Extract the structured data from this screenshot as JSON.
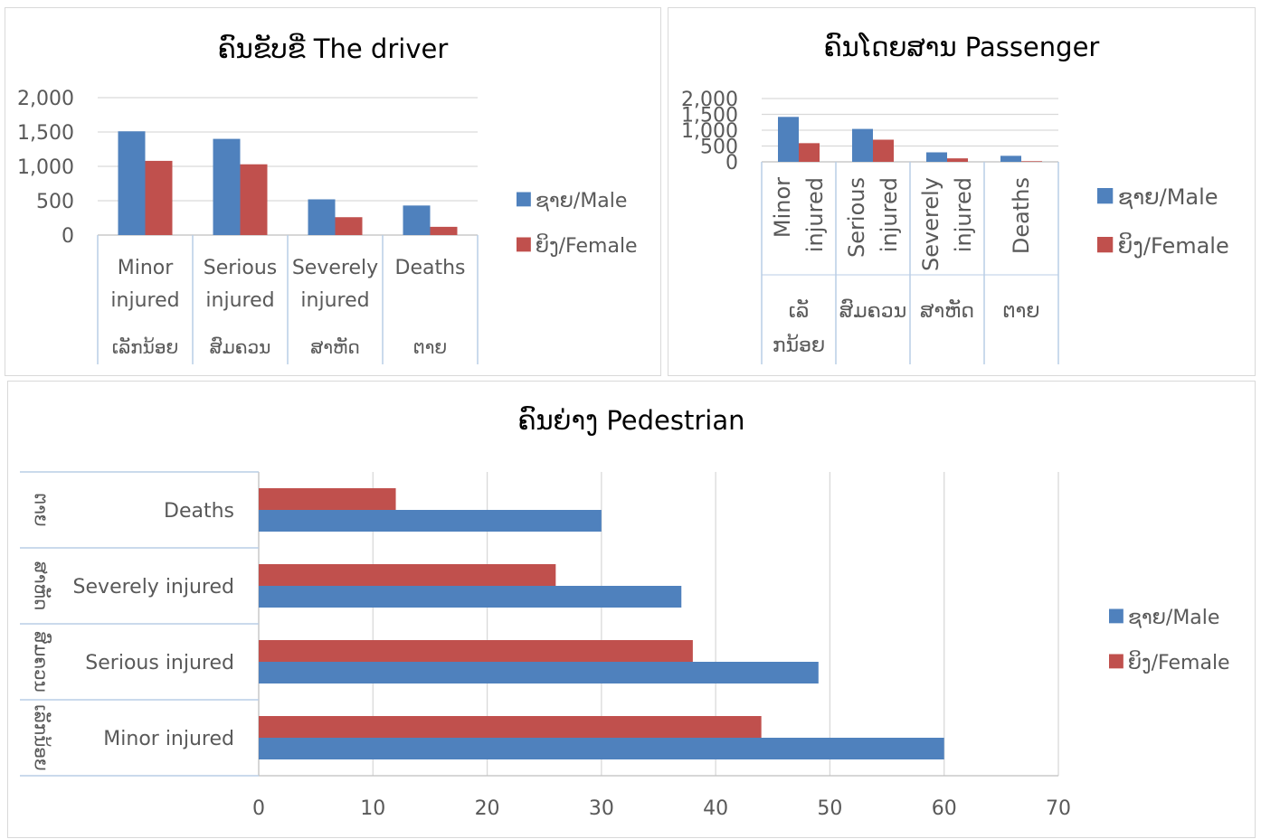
{
  "colors": {
    "male": "#4f81bd",
    "female": "#c0504d",
    "grid": "#d9d9d9",
    "axis": "#bfbfbf",
    "text": "#595959",
    "catline": "#b9cde5"
  },
  "legend": {
    "male": "ຊາຍ/Male",
    "female": "ຍິງ/Female"
  },
  "chart_data": [
    {
      "type": "bar",
      "title": "ຄົນຂັບຂີ່ The driver",
      "categories": [
        "Minor injured",
        "Serious injured",
        "Severely injured",
        "Deaths"
      ],
      "categories_lao": [
        "ເລັກນ້ອຍ",
        "ສົມຄວນ",
        "ສາຫັດ",
        "ຕາຍ"
      ],
      "ylim": [
        0,
        2000
      ],
      "yticks": [
        "2,000",
        "1,500",
        "1,000",
        "500",
        "0"
      ],
      "series": [
        {
          "name": "ຊາຍ/Male",
          "values": [
            1510,
            1400,
            520,
            430
          ]
        },
        {
          "name": "ຍິງ/Female",
          "values": [
            1080,
            1030,
            260,
            120
          ]
        }
      ],
      "legend_position": "right"
    },
    {
      "type": "bar",
      "title": "ຄົນໂດຍສານ Passenger",
      "categories": [
        "Minor injured",
        "Serious injured",
        "Severely injured",
        "Deaths"
      ],
      "categories_lao": [
        "ເລັກນ້ອຍ",
        "ສົມຄວນ",
        "ສາຫັດ",
        "ຕາຍ"
      ],
      "ylim": [
        0,
        2000
      ],
      "yticks": [
        "2,000",
        "1,500",
        "1,000",
        "500",
        "0"
      ],
      "series": [
        {
          "name": "ຊາຍ/Male",
          "values": [
            1420,
            1040,
            300,
            190
          ]
        },
        {
          "name": "ຍິງ/Female",
          "values": [
            590,
            700,
            110,
            20
          ]
        }
      ],
      "legend_position": "right"
    },
    {
      "type": "bar",
      "orientation": "horizontal",
      "title": "ຄົນຍ່າງ Pedestrian",
      "categories": [
        "Minor injured",
        "Serious injured",
        "Severely injured",
        "Deaths"
      ],
      "categories_lao": [
        "ເລັກນ້ອຍ",
        "ສົມຄວນ",
        "ສາຫັດ",
        "ຕາຍ"
      ],
      "xlim": [
        0,
        70
      ],
      "xticks": [
        "0",
        "10",
        "20",
        "30",
        "40",
        "50",
        "60",
        "70"
      ],
      "series": [
        {
          "name": "ຊາຍ/Male",
          "values": [
            60,
            49,
            37,
            30
          ]
        },
        {
          "name": "ຍິງ/Female",
          "values": [
            44,
            38,
            26,
            12
          ]
        }
      ],
      "legend_position": "right"
    }
  ]
}
